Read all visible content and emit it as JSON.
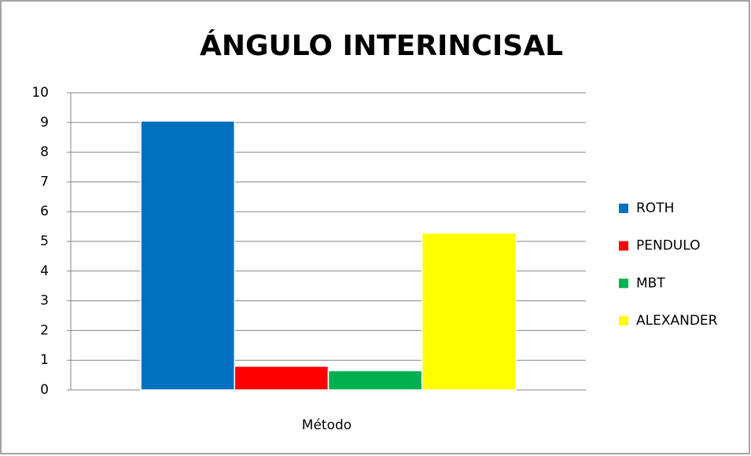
{
  "chart_data": {
    "type": "bar",
    "title": "ÁNGULO INTERINCISAL",
    "categories": [
      "Método"
    ],
    "series": [
      {
        "name": "ROTH",
        "color": "#0070c0",
        "values": [
          9.05
        ]
      },
      {
        "name": "PENDULO",
        "color": "#ff0000",
        "values": [
          0.8
        ]
      },
      {
        "name": "MBT",
        "color": "#00b050",
        "values": [
          0.65
        ]
      },
      {
        "name": "ALEXANDER",
        "color": "#ffff00",
        "values": [
          5.28
        ]
      }
    ],
    "ylim": [
      0,
      10
    ],
    "yticks": [
      0,
      1,
      2,
      3,
      4,
      5,
      6,
      7,
      8,
      9,
      10
    ],
    "grid": true,
    "legend": "right"
  }
}
